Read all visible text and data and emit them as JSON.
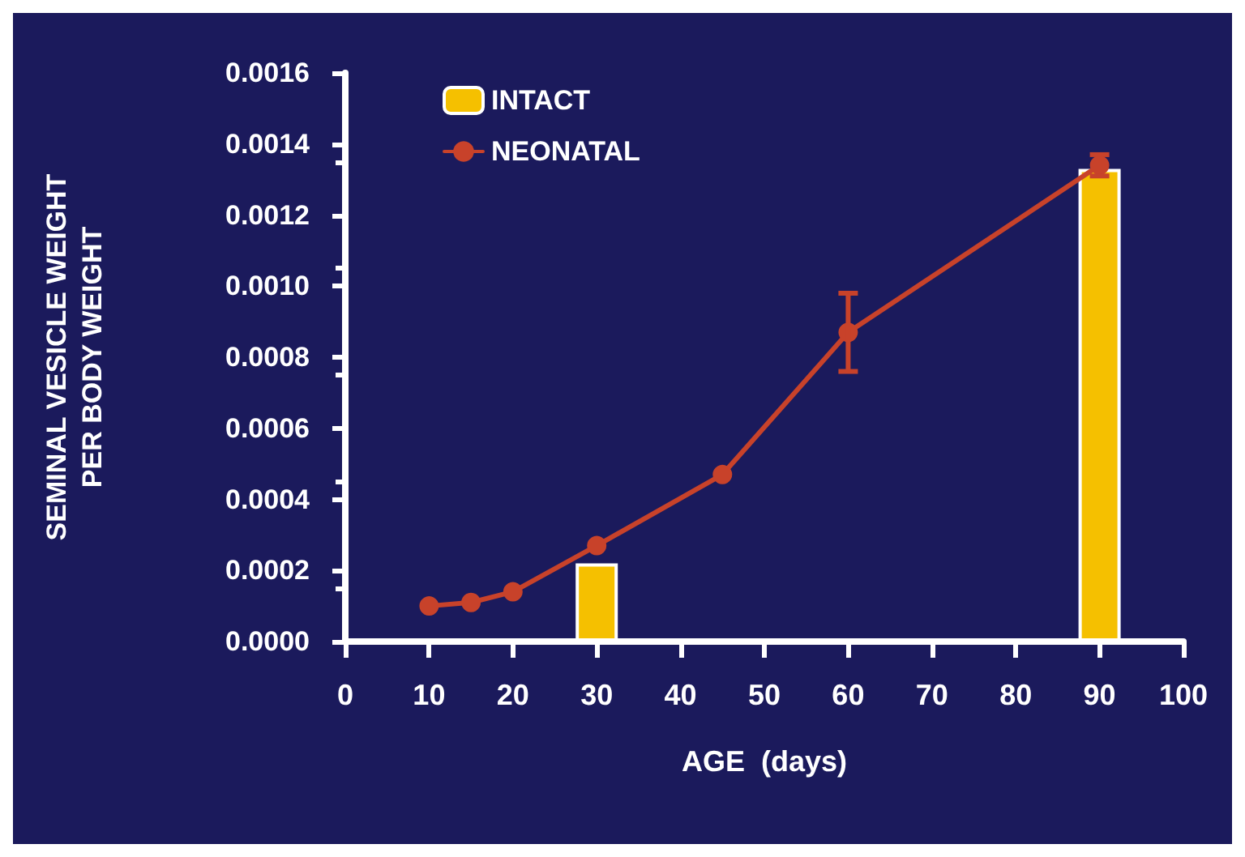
{
  "chart_data": {
    "type": "line",
    "xlabel": "AGE  (days)",
    "ylabel": "SEMINAL VESICLE WEIGHT\nPER BODY WEIGHT",
    "xlim": [
      0,
      100
    ],
    "xticks": [
      0,
      10,
      20,
      30,
      40,
      50,
      60,
      70,
      80,
      90,
      100
    ],
    "ylim": [
      0,
      0.0016
    ],
    "yticks": [
      {
        "value": 0,
        "label": "0.0000"
      },
      {
        "value": 0.0002,
        "label": "0.0002"
      },
      {
        "value": 0.0004,
        "label": "0.0004"
      },
      {
        "value": 0.0006,
        "label": "0.0006"
      },
      {
        "value": 0.0008,
        "label": "0.0008"
      },
      {
        "value": 0.001,
        "label": "0.0010"
      },
      {
        "value": 0.0012,
        "label": "0.0012"
      },
      {
        "value": 0.0014,
        "label": "0.0014"
      },
      {
        "value": 0.0016,
        "label": "0.0016"
      }
    ],
    "grid": false,
    "legend": "top left",
    "marker": "circle",
    "line_style": "solid",
    "series": [
      {
        "name": "INTACT",
        "type": "bar",
        "color": "#f5c000",
        "x": [
          30,
          90
        ],
        "values": [
          0.00022,
          0.00133
        ]
      },
      {
        "name": "NEONATAL",
        "color": "#c8422a",
        "x": [
          10,
          15,
          20,
          30,
          45,
          60,
          90
        ],
        "values": [
          0.0001,
          0.00011,
          0.00014,
          0.00027,
          0.00047,
          0.00087,
          0.00134
        ],
        "errors": [
          null,
          null,
          null,
          null,
          null,
          0.00011,
          3e-05
        ]
      }
    ]
  }
}
